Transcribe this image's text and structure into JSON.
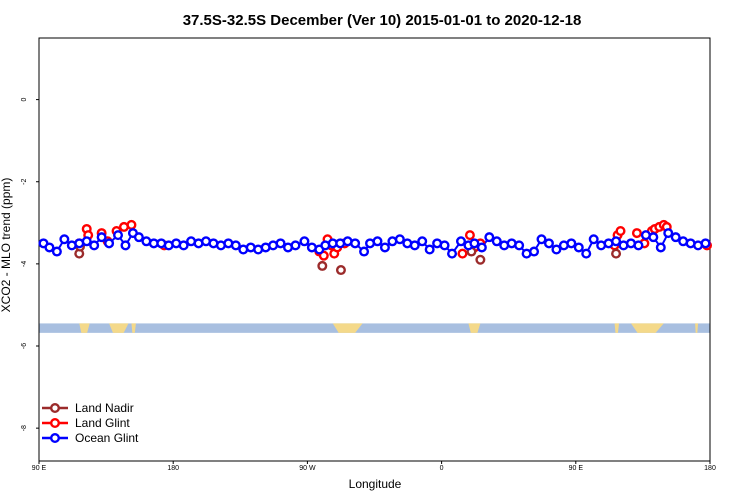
{
  "chart_data": {
    "type": "scatter",
    "title": "37.5S-32.5S December (Ver 10)   2015-01-01 to 2020-12-18",
    "xlabel": "Longitude",
    "ylabel": "XCO2 - MLO trend (ppm)",
    "xlim": [
      90,
      540
    ],
    "ylim": [
      -8.8,
      1.5
    ],
    "x_ticks": [
      {
        "value": 90,
        "label": "90 E"
      },
      {
        "value": 180,
        "label": "180"
      },
      {
        "value": 270,
        "label": "90 W"
      },
      {
        "value": 360,
        "label": "0"
      },
      {
        "value": 450,
        "label": "90 E"
      },
      {
        "value": 540,
        "label": "180"
      }
    ],
    "y_ticks": [
      {
        "value": 0,
        "label": "0"
      },
      {
        "value": -2,
        "label": "-2"
      },
      {
        "value": -4,
        "label": "-4"
      },
      {
        "value": -6,
        "label": "-6"
      },
      {
        "value": -8,
        "label": "-8"
      }
    ],
    "grid": false,
    "legend_position": "bottom-left",
    "map_strip": {
      "y_range": [
        -5.45,
        -5.68
      ],
      "ocean_color": "#a8bfe0",
      "land_color": "#f4d98a",
      "land_spans": [
        [
          117,
          124
        ],
        [
          137,
          150
        ],
        [
          152,
          155
        ],
        [
          287,
          307
        ],
        [
          378,
          386
        ],
        [
          476,
          479
        ],
        [
          487,
          509
        ],
        [
          530,
          532
        ]
      ]
    },
    "series": [
      {
        "name": "Land Nadir",
        "color": "#9b2b2b",
        "x": [
          117,
          117.5,
          280,
          292.5,
          380,
          386,
          477
        ],
        "y": [
          -3.75,
          -3.58,
          -4.05,
          -4.15,
          -3.7,
          -3.9,
          -3.75
        ]
      },
      {
        "name": "Land Glint",
        "color": "#ff0000",
        "x": [
          117,
          122,
          123,
          132,
          136,
          142,
          147,
          152,
          174,
          278,
          281,
          283.5,
          286,
          288,
          290,
          295,
          374,
          379,
          382,
          386,
          476,
          478,
          480,
          491,
          496,
          501,
          503,
          506,
          509,
          511,
          538
        ],
        "y": [
          -3.5,
          -3.15,
          -3.3,
          -3.25,
          -3.45,
          -3.2,
          -3.1,
          -3.05,
          -3.55,
          -3.7,
          -3.8,
          -3.4,
          -3.55,
          -3.75,
          -3.6,
          -3.5,
          -3.75,
          -3.3,
          -3.6,
          -3.5,
          -3.55,
          -3.3,
          -3.2,
          -3.25,
          -3.5,
          -3.2,
          -3.15,
          -3.1,
          -3.05,
          -3.1,
          -3.55
        ]
      },
      {
        "name": "Ocean Glint",
        "color": "#0000ff",
        "x": [
          93,
          97,
          102,
          107,
          112,
          117,
          122,
          127,
          132,
          137,
          143,
          148,
          153,
          157,
          162,
          167,
          172,
          177,
          182,
          187,
          192,
          197,
          202,
          207,
          212,
          217,
          222,
          227,
          232,
          237,
          242,
          247,
          252,
          257,
          262,
          268,
          273,
          278,
          282,
          287,
          292,
          297,
          302,
          308,
          312,
          317,
          322,
          327,
          332,
          337,
          342,
          347,
          352,
          357,
          362,
          367,
          373,
          378,
          382,
          387,
          392,
          397,
          402,
          407,
          412,
          417,
          422,
          427,
          432,
          437,
          442,
          447,
          452,
          457,
          462,
          467,
          472,
          477,
          482,
          487,
          492,
          497,
          502,
          507,
          512,
          517,
          522,
          527,
          532,
          537
        ],
        "y": [
          -3.5,
          -3.6,
          -3.7,
          -3.4,
          -3.55,
          -3.5,
          -3.45,
          -3.55,
          -3.35,
          -3.5,
          -3.3,
          -3.55,
          -3.25,
          -3.35,
          -3.45,
          -3.5,
          -3.5,
          -3.55,
          -3.5,
          -3.55,
          -3.45,
          -3.5,
          -3.45,
          -3.5,
          -3.55,
          -3.5,
          -3.55,
          -3.65,
          -3.6,
          -3.65,
          -3.6,
          -3.55,
          -3.5,
          -3.6,
          -3.55,
          -3.45,
          -3.6,
          -3.65,
          -3.55,
          -3.5,
          -3.5,
          -3.45,
          -3.5,
          -3.7,
          -3.5,
          -3.45,
          -3.6,
          -3.45,
          -3.4,
          -3.5,
          -3.55,
          -3.45,
          -3.65,
          -3.5,
          -3.55,
          -3.75,
          -3.45,
          -3.55,
          -3.5,
          -3.6,
          -3.35,
          -3.45,
          -3.55,
          -3.5,
          -3.55,
          -3.75,
          -3.7,
          -3.4,
          -3.5,
          -3.65,
          -3.55,
          -3.5,
          -3.6,
          -3.75,
          -3.4,
          -3.55,
          -3.5,
          -3.45,
          -3.55,
          -3.5,
          -3.55,
          -3.3,
          -3.35,
          -3.6,
          -3.25,
          -3.35,
          -3.45,
          -3.5,
          -3.55,
          -3.5
        ]
      }
    ]
  }
}
